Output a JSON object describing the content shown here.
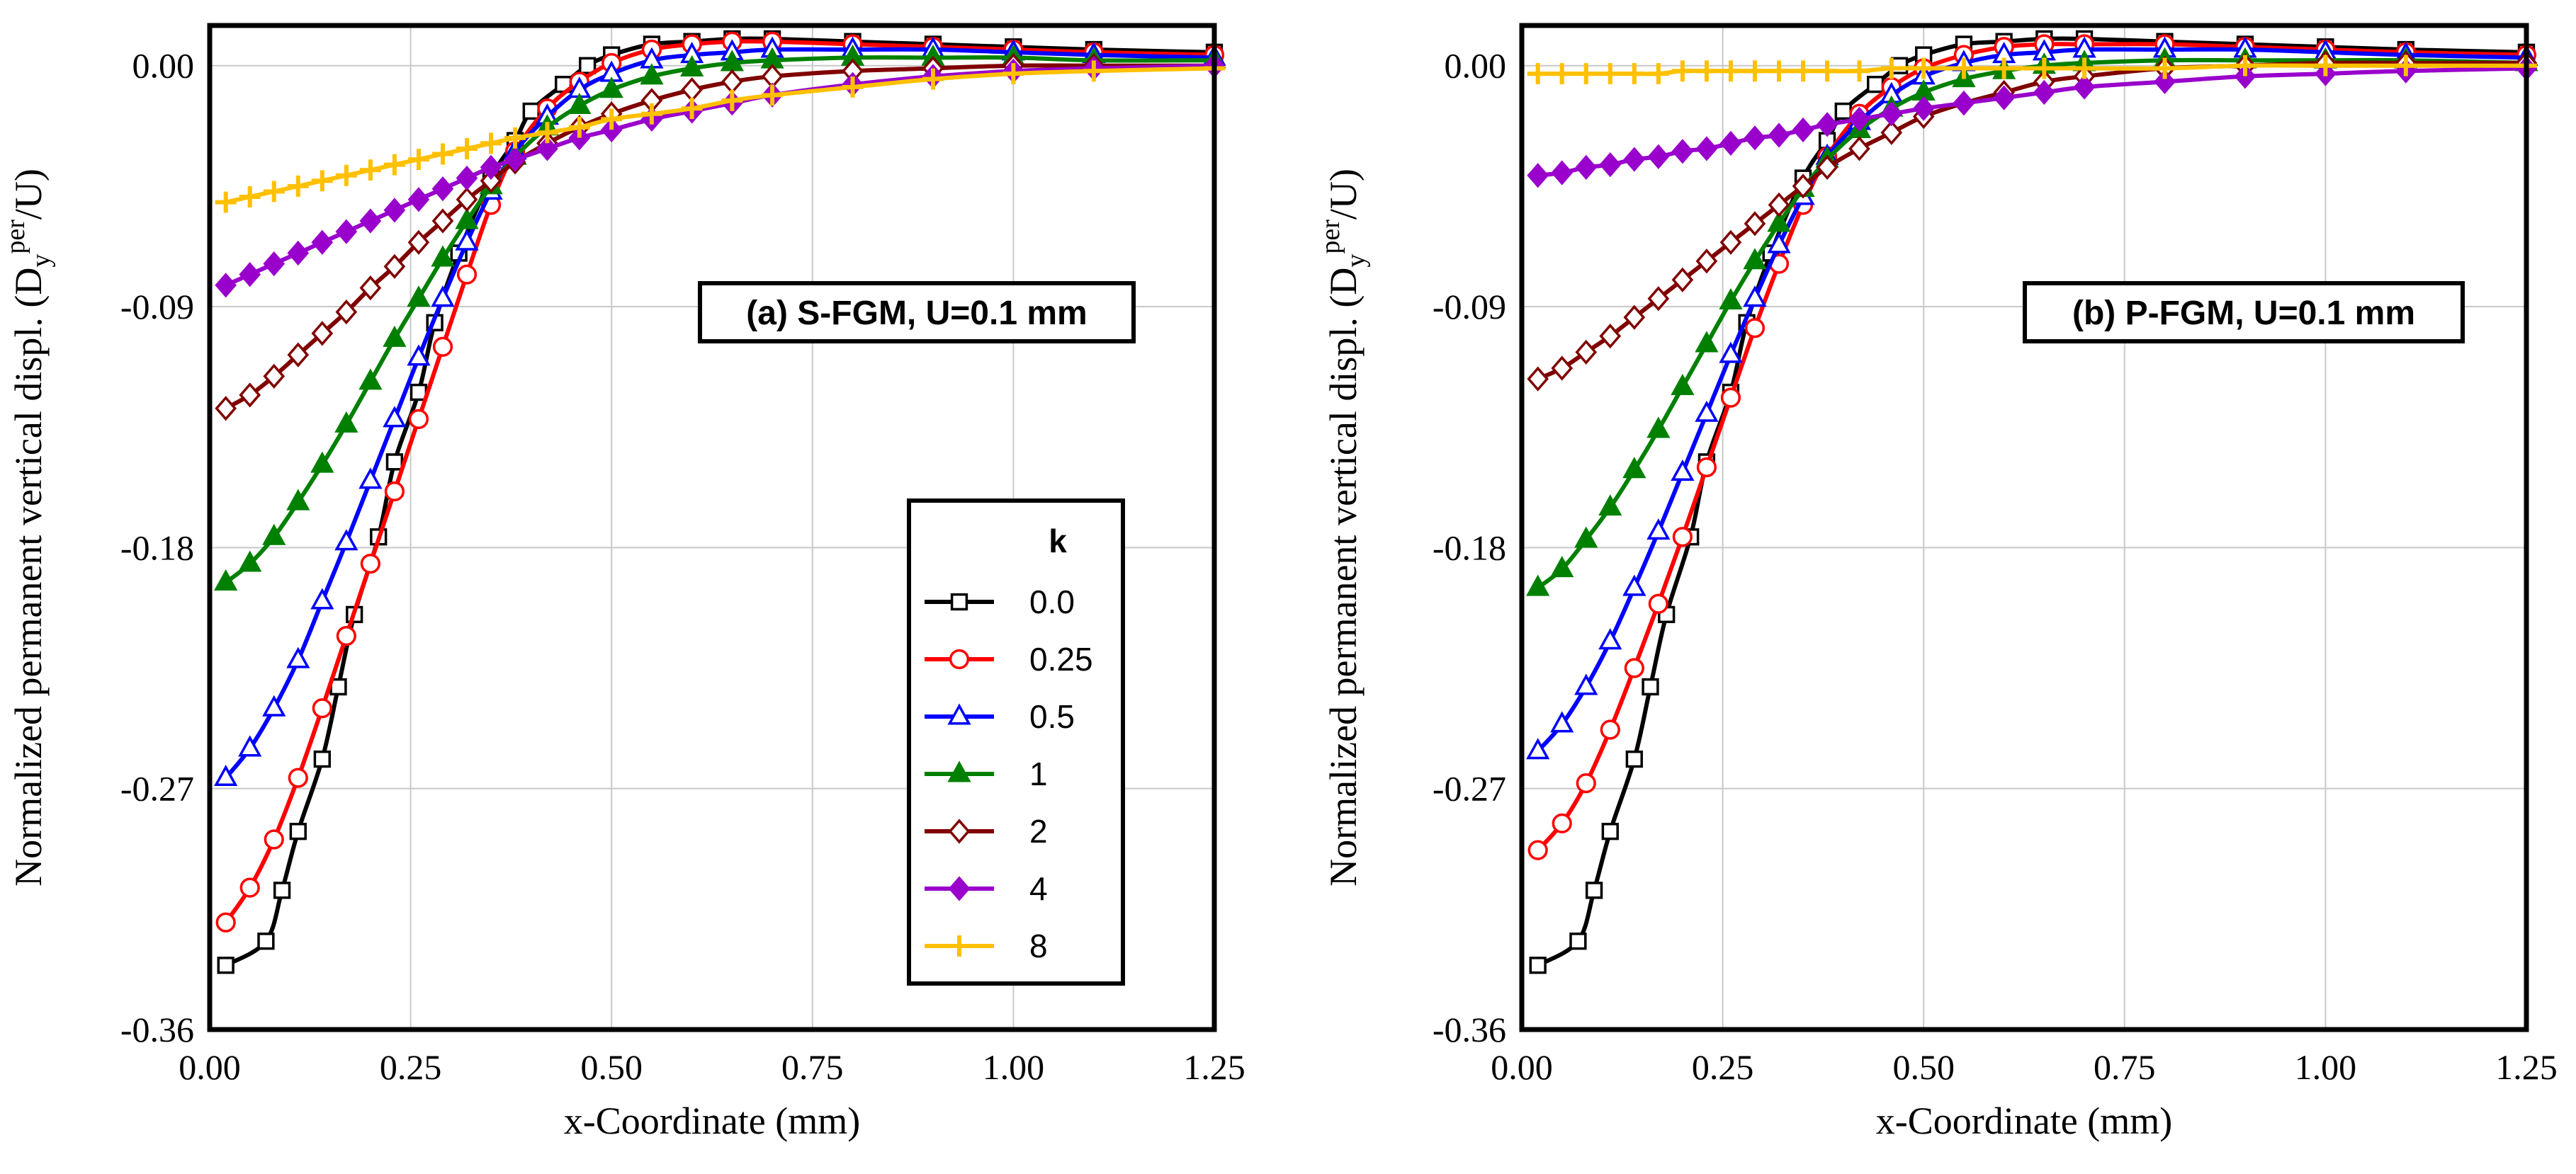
{
  "figure_title": "Normalized permanent vertical displacement vs x-coordinate for S-FGM and P-FGM",
  "chart_data": [
    {
      "type": "line",
      "title": "(a) S-FGM, U=0.1 mm",
      "xlabel": "x-Coordinate (mm)",
      "ylabel_main": "Normalized permanent vertical displ. (D",
      "ylabel_sub": "y",
      "ylabel_sup": "per",
      "ylabel_tail": "/U)",
      "xlim": [
        0,
        1.25
      ],
      "ylim": [
        -0.36,
        0.015
      ],
      "xticks": [
        0,
        0.25,
        0.5,
        0.75,
        1.0,
        1.25
      ],
      "xtick_labels": [
        "0.00",
        "0.25",
        "0.50",
        "0.75",
        "1.00",
        "1.25"
      ],
      "yticks": [
        0,
        -0.09,
        -0.18,
        -0.27,
        -0.36
      ],
      "ytick_labels": [
        "0.00",
        "-0.09",
        "-0.18",
        "-0.27",
        "-0.36"
      ],
      "grid": true,
      "legend": {
        "title": "k",
        "placement": "lower-right",
        "entries": [
          "0.0",
          "0.25",
          "0.5",
          "1",
          "2",
          "4",
          "8"
        ]
      },
      "series": [
        {
          "name": "0.0",
          "color": "#000000",
          "marker": "square-open",
          "x": [
            0.02,
            0.07,
            0.09,
            0.11,
            0.14,
            0.16,
            0.18,
            0.21,
            0.23,
            0.26,
            0.28,
            0.31,
            0.35,
            0.38,
            0.4,
            0.44,
            0.47,
            0.5,
            0.55,
            0.6,
            0.65,
            0.7,
            0.8,
            0.9,
            1.0,
            1.1,
            1.25
          ],
          "y": [
            -0.336,
            -0.327,
            -0.308,
            -0.286,
            -0.259,
            -0.232,
            -0.205,
            -0.176,
            -0.148,
            -0.122,
            -0.096,
            -0.07,
            -0.042,
            -0.028,
            -0.017,
            -0.007,
            0.0,
            0.004,
            0.008,
            0.009,
            0.01,
            0.01,
            0.009,
            0.008,
            0.007,
            0.006,
            0.005
          ]
        },
        {
          "name": "0.25",
          "color": "#ff0000",
          "marker": "circle-open",
          "x": [
            0.02,
            0.05,
            0.08,
            0.11,
            0.14,
            0.17,
            0.2,
            0.23,
            0.26,
            0.29,
            0.32,
            0.35,
            0.38,
            0.42,
            0.46,
            0.5,
            0.55,
            0.6,
            0.65,
            0.7,
            0.8,
            0.9,
            1.0,
            1.1,
            1.25
          ],
          "y": [
            -0.32,
            -0.307,
            -0.289,
            -0.266,
            -0.24,
            -0.213,
            -0.186,
            -0.159,
            -0.132,
            -0.105,
            -0.078,
            -0.052,
            -0.032,
            -0.016,
            -0.006,
            0.001,
            0.006,
            0.008,
            0.009,
            0.009,
            0.008,
            0.007,
            0.006,
            0.005,
            0.004
          ]
        },
        {
          "name": "0.5",
          "color": "#0000ff",
          "marker": "triangle-open",
          "x": [
            0.02,
            0.05,
            0.08,
            0.11,
            0.14,
            0.17,
            0.2,
            0.23,
            0.26,
            0.29,
            0.32,
            0.35,
            0.38,
            0.42,
            0.46,
            0.5,
            0.55,
            0.6,
            0.65,
            0.7,
            0.8,
            0.9,
            1.0,
            1.1,
            1.25
          ],
          "y": [
            -0.266,
            -0.255,
            -0.24,
            -0.222,
            -0.2,
            -0.178,
            -0.155,
            -0.132,
            -0.109,
            -0.087,
            -0.066,
            -0.047,
            -0.032,
            -0.019,
            -0.009,
            -0.003,
            0.002,
            0.004,
            0.005,
            0.006,
            0.006,
            0.006,
            0.005,
            0.004,
            0.003
          ]
        },
        {
          "name": "1",
          "color": "#008000",
          "marker": "triangle-filled",
          "x": [
            0.02,
            0.05,
            0.08,
            0.11,
            0.14,
            0.17,
            0.2,
            0.23,
            0.26,
            0.29,
            0.32,
            0.35,
            0.38,
            0.42,
            0.46,
            0.5,
            0.55,
            0.6,
            0.65,
            0.7,
            0.8,
            0.9,
            1.0,
            1.1,
            1.25
          ],
          "y": [
            -0.193,
            -0.186,
            -0.176,
            -0.163,
            -0.149,
            -0.134,
            -0.118,
            -0.102,
            -0.087,
            -0.072,
            -0.058,
            -0.045,
            -0.034,
            -0.023,
            -0.015,
            -0.009,
            -0.004,
            -0.001,
            0.001,
            0.002,
            0.003,
            0.003,
            0.003,
            0.002,
            0.002
          ]
        },
        {
          "name": "2",
          "color": "#800000",
          "marker": "diamond-open",
          "x": [
            0.02,
            0.05,
            0.08,
            0.11,
            0.14,
            0.17,
            0.2,
            0.23,
            0.26,
            0.29,
            0.32,
            0.35,
            0.38,
            0.42,
            0.46,
            0.5,
            0.55,
            0.6,
            0.65,
            0.7,
            0.8,
            0.9,
            1.0,
            1.1,
            1.25
          ],
          "y": [
            -0.128,
            -0.123,
            -0.116,
            -0.108,
            -0.1,
            -0.092,
            -0.083,
            -0.075,
            -0.066,
            -0.058,
            -0.05,
            -0.043,
            -0.036,
            -0.029,
            -0.023,
            -0.018,
            -0.013,
            -0.009,
            -0.006,
            -0.004,
            -0.002,
            -0.001,
            0.0,
            0.0,
            0.0
          ]
        },
        {
          "name": "4",
          "color": "#9900cc",
          "marker": "diamond-filled",
          "x": [
            0.02,
            0.05,
            0.08,
            0.11,
            0.14,
            0.17,
            0.2,
            0.23,
            0.26,
            0.29,
            0.32,
            0.35,
            0.38,
            0.42,
            0.46,
            0.5,
            0.55,
            0.6,
            0.65,
            0.7,
            0.8,
            0.9,
            1.0,
            1.1,
            1.25
          ],
          "y": [
            -0.082,
            -0.078,
            -0.074,
            -0.07,
            -0.066,
            -0.062,
            -0.058,
            -0.054,
            -0.05,
            -0.046,
            -0.042,
            -0.038,
            -0.035,
            -0.031,
            -0.027,
            -0.024,
            -0.02,
            -0.017,
            -0.014,
            -0.011,
            -0.007,
            -0.004,
            -0.002,
            -0.001,
            0.0
          ]
        },
        {
          "name": "8",
          "color": "#ffc000",
          "marker": "plus",
          "x": [
            0.02,
            0.05,
            0.08,
            0.11,
            0.14,
            0.17,
            0.2,
            0.23,
            0.26,
            0.29,
            0.32,
            0.35,
            0.38,
            0.42,
            0.46,
            0.5,
            0.55,
            0.6,
            0.65,
            0.7,
            0.8,
            0.9,
            1.0,
            1.1,
            1.25
          ],
          "y": [
            -0.051,
            -0.049,
            -0.047,
            -0.045,
            -0.043,
            -0.041,
            -0.039,
            -0.037,
            -0.035,
            -0.033,
            -0.031,
            -0.029,
            -0.027,
            -0.025,
            -0.023,
            -0.02,
            -0.018,
            -0.016,
            -0.013,
            -0.011,
            -0.008,
            -0.005,
            -0.003,
            -0.002,
            -0.001
          ]
        }
      ]
    },
    {
      "type": "line",
      "title": "(b) P-FGM, U=0.1 mm",
      "xlabel": "x-Coordinate (mm)",
      "ylabel_main": "Normalized permanent vertical displ. (D",
      "ylabel_sub": "y",
      "ylabel_sup": "per",
      "ylabel_tail": "/U)",
      "xlim": [
        0,
        1.25
      ],
      "ylim": [
        -0.36,
        0.015
      ],
      "xticks": [
        0,
        0.25,
        0.5,
        0.75,
        1.0,
        1.25
      ],
      "xtick_labels": [
        "0.00",
        "0.25",
        "0.50",
        "0.75",
        "1.00",
        "1.25"
      ],
      "yticks": [
        0,
        -0.09,
        -0.18,
        -0.27,
        -0.36
      ],
      "ytick_labels": [
        "0.00",
        "-0.09",
        "-0.18",
        "-0.27",
        "-0.36"
      ],
      "grid": true,
      "series": [
        {
          "name": "0.0",
          "color": "#000000",
          "marker": "square-open",
          "x": [
            0.02,
            0.07,
            0.09,
            0.11,
            0.14,
            0.16,
            0.18,
            0.21,
            0.23,
            0.26,
            0.28,
            0.31,
            0.35,
            0.38,
            0.4,
            0.44,
            0.47,
            0.5,
            0.55,
            0.6,
            0.65,
            0.7,
            0.8,
            0.9,
            1.0,
            1.1,
            1.25
          ],
          "y": [
            -0.336,
            -0.327,
            -0.308,
            -0.286,
            -0.259,
            -0.232,
            -0.205,
            -0.176,
            -0.148,
            -0.122,
            -0.096,
            -0.07,
            -0.042,
            -0.028,
            -0.017,
            -0.007,
            0.0,
            0.004,
            0.008,
            0.009,
            0.01,
            0.01,
            0.009,
            0.008,
            0.007,
            0.006,
            0.005
          ]
        },
        {
          "name": "0.25",
          "color": "#ff0000",
          "marker": "circle-open",
          "x": [
            0.02,
            0.05,
            0.08,
            0.11,
            0.14,
            0.17,
            0.2,
            0.23,
            0.26,
            0.29,
            0.32,
            0.35,
            0.38,
            0.42,
            0.46,
            0.5,
            0.55,
            0.6,
            0.65,
            0.7,
            0.8,
            0.9,
            1.0,
            1.1,
            1.25
          ],
          "y": [
            -0.293,
            -0.283,
            -0.268,
            -0.248,
            -0.225,
            -0.201,
            -0.176,
            -0.15,
            -0.124,
            -0.098,
            -0.074,
            -0.052,
            -0.034,
            -0.018,
            -0.008,
            -0.001,
            0.004,
            0.007,
            0.008,
            0.008,
            0.008,
            0.007,
            0.006,
            0.005,
            0.004
          ]
        },
        {
          "name": "0.5",
          "color": "#0000ff",
          "marker": "triangle-open",
          "x": [
            0.02,
            0.05,
            0.08,
            0.11,
            0.14,
            0.17,
            0.2,
            0.23,
            0.26,
            0.29,
            0.32,
            0.35,
            0.38,
            0.42,
            0.46,
            0.5,
            0.55,
            0.6,
            0.65,
            0.7,
            0.8,
            0.9,
            1.0,
            1.1,
            1.25
          ],
          "y": [
            -0.256,
            -0.246,
            -0.232,
            -0.215,
            -0.195,
            -0.174,
            -0.152,
            -0.13,
            -0.108,
            -0.087,
            -0.067,
            -0.049,
            -0.034,
            -0.021,
            -0.011,
            -0.004,
            0.001,
            0.004,
            0.005,
            0.006,
            0.006,
            0.006,
            0.005,
            0.004,
            0.003
          ]
        },
        {
          "name": "1",
          "color": "#008000",
          "marker": "triangle-filled",
          "x": [
            0.02,
            0.05,
            0.08,
            0.11,
            0.14,
            0.17,
            0.2,
            0.23,
            0.26,
            0.29,
            0.32,
            0.35,
            0.38,
            0.42,
            0.46,
            0.5,
            0.55,
            0.6,
            0.65,
            0.7,
            0.8,
            0.9,
            1.0,
            1.1,
            1.25
          ],
          "y": [
            -0.195,
            -0.188,
            -0.177,
            -0.165,
            -0.151,
            -0.136,
            -0.12,
            -0.104,
            -0.088,
            -0.073,
            -0.059,
            -0.046,
            -0.035,
            -0.024,
            -0.016,
            -0.01,
            -0.005,
            -0.002,
            0.0,
            0.001,
            0.002,
            0.002,
            0.002,
            0.002,
            0.001
          ]
        },
        {
          "name": "2",
          "color": "#800000",
          "marker": "diamond-open",
          "x": [
            0.02,
            0.05,
            0.08,
            0.11,
            0.14,
            0.17,
            0.2,
            0.23,
            0.26,
            0.29,
            0.32,
            0.35,
            0.38,
            0.42,
            0.46,
            0.5,
            0.55,
            0.6,
            0.65,
            0.7,
            0.8,
            0.9,
            1.0,
            1.1,
            1.25
          ],
          "y": [
            -0.117,
            -0.113,
            -0.107,
            -0.101,
            -0.094,
            -0.087,
            -0.08,
            -0.073,
            -0.066,
            -0.059,
            -0.052,
            -0.045,
            -0.038,
            -0.031,
            -0.025,
            -0.019,
            -0.014,
            -0.01,
            -0.006,
            -0.004,
            -0.001,
            0.0,
            0.001,
            0.001,
            0.001
          ]
        },
        {
          "name": "4",
          "color": "#9900cc",
          "marker": "diamond-filled",
          "x": [
            0.02,
            0.05,
            0.08,
            0.11,
            0.14,
            0.17,
            0.2,
            0.23,
            0.26,
            0.29,
            0.32,
            0.35,
            0.38,
            0.42,
            0.46,
            0.5,
            0.55,
            0.6,
            0.65,
            0.7,
            0.8,
            0.9,
            1.0,
            1.1,
            1.25
          ],
          "y": [
            -0.041,
            -0.04,
            -0.038,
            -0.037,
            -0.035,
            -0.034,
            -0.032,
            -0.031,
            -0.029,
            -0.027,
            -0.026,
            -0.024,
            -0.022,
            -0.02,
            -0.018,
            -0.016,
            -0.014,
            -0.012,
            -0.01,
            -0.008,
            -0.006,
            -0.004,
            -0.003,
            -0.002,
            -0.001
          ]
        },
        {
          "name": "8",
          "color": "#ffc000",
          "marker": "plus",
          "x": [
            0.02,
            0.05,
            0.08,
            0.11,
            0.14,
            0.17,
            0.2,
            0.23,
            0.26,
            0.29,
            0.32,
            0.35,
            0.38,
            0.42,
            0.46,
            0.5,
            0.55,
            0.6,
            0.65,
            0.7,
            0.8,
            0.9,
            1.0,
            1.1,
            1.25
          ],
          "y": [
            -0.003,
            -0.003,
            -0.003,
            -0.003,
            -0.003,
            -0.003,
            -0.002,
            -0.002,
            -0.002,
            -0.002,
            -0.002,
            -0.002,
            -0.002,
            -0.002,
            -0.001,
            -0.001,
            -0.001,
            -0.001,
            -0.001,
            -0.001,
            -0.001,
            0.0,
            0.0,
            0.0,
            0.0
          ]
        }
      ]
    }
  ]
}
